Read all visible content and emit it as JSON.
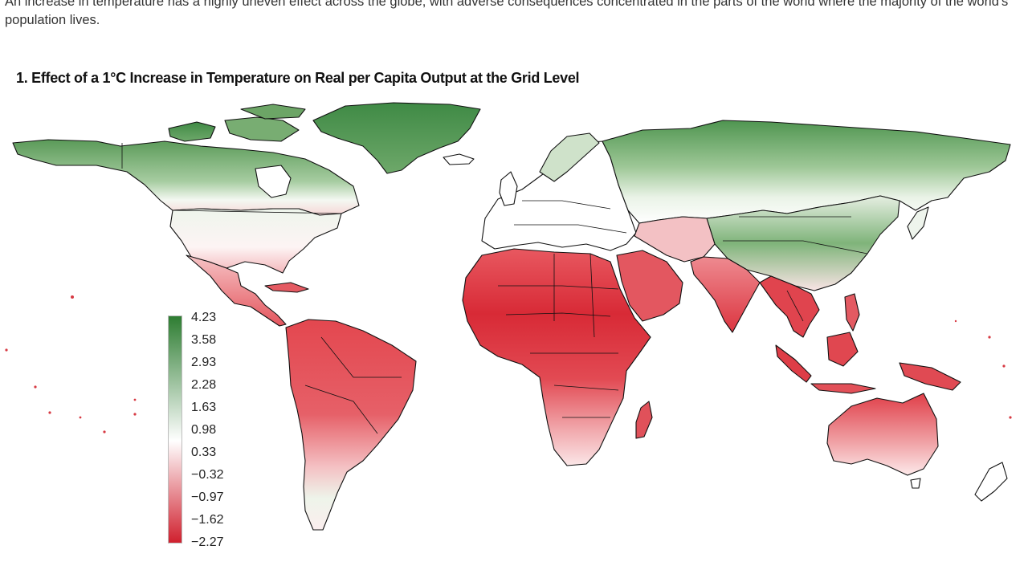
{
  "intro_text": "An increase in temperature has a highly uneven effect across the globe, with adverse consequences concentrated in the parts of the world where the majority of the world's population lives.",
  "chart_title": "1. Effect of a 1°C Increase in Temperature on Real per Capita Output at the Grid Level",
  "legend": {
    "values": [
      "4.23",
      "3.58",
      "2.93",
      "2.28",
      "1.63",
      "0.98",
      "0.33",
      "−0.32",
      "−0.97",
      "−1.62",
      "−2.27"
    ],
    "color_high": "#2e7d32",
    "color_mid": "#ffffff",
    "color_low": "#d0202e"
  },
  "colors": {
    "positive_region": "#5e9f5e",
    "negative_region": "#e03a45",
    "border": "#111111"
  }
}
